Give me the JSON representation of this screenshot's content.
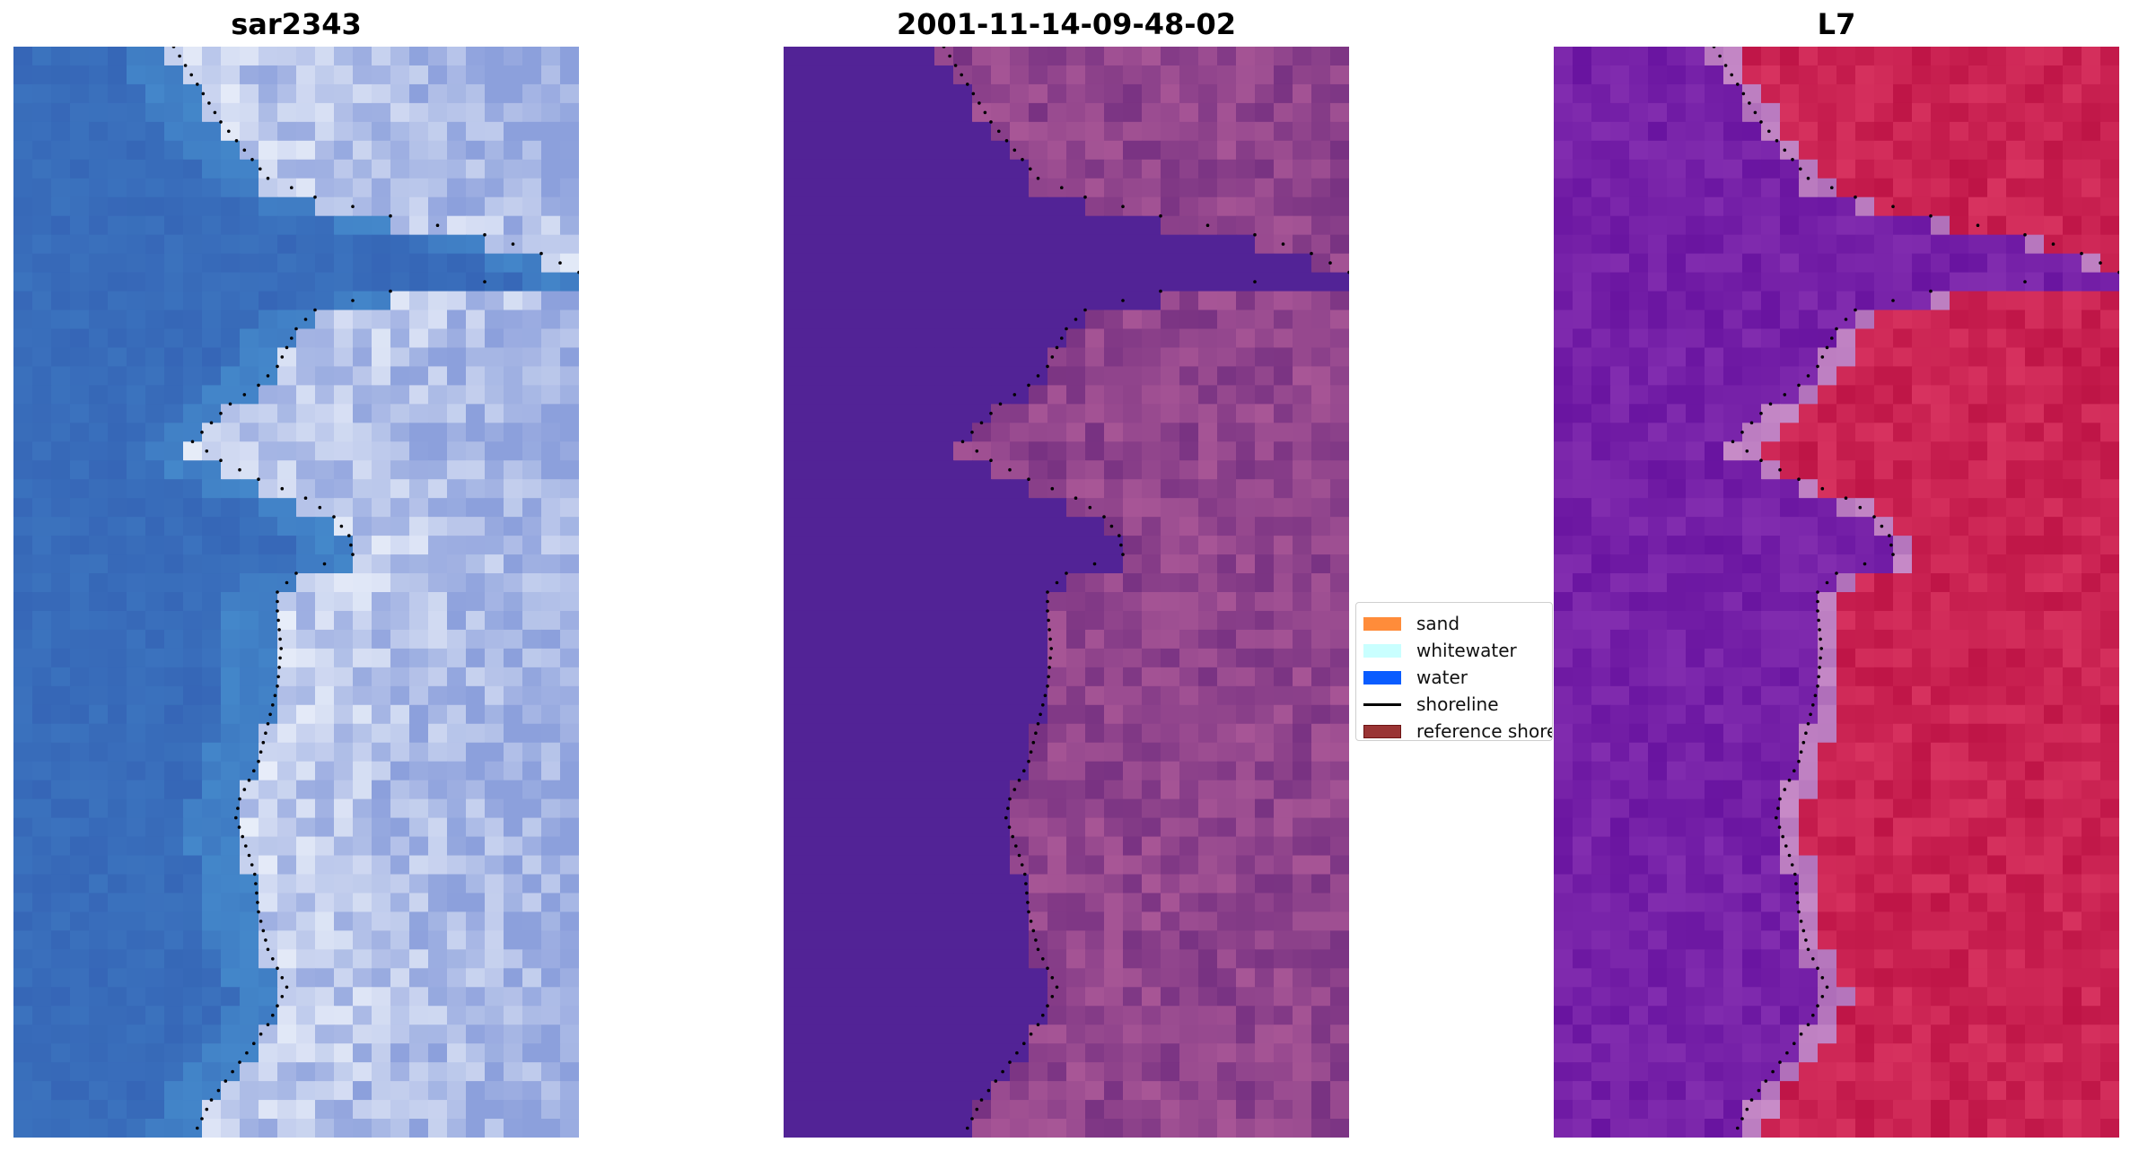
{
  "panels": [
    {
      "title": "sar2343",
      "palette": "rgb",
      "base": "#3f6fc0"
    },
    {
      "title": "2001-11-14-09-48-02",
      "palette": "classified",
      "base": "#522396"
    },
    {
      "title": "L7",
      "palette": "ndwi",
      "base": "#7a1fa6"
    }
  ],
  "legend": {
    "items": [
      {
        "label": "sand",
        "color": "#ff8c3a",
        "kind": "patch"
      },
      {
        "label": "whitewater",
        "color": "#c9ffff",
        "kind": "patch"
      },
      {
        "label": "water",
        "color": "#0a5cff",
        "kind": "patch"
      },
      {
        "label": "shoreline",
        "color": "#000000",
        "kind": "line"
      },
      {
        "label": "reference shoreline",
        "color": "#9a3434",
        "kind": "patch-bordered"
      }
    ]
  },
  "colors": {
    "water_class": "#522396",
    "land_class": "#a24a8a",
    "ndwi_land": "#c8103e",
    "ndwi_water": "#7a1fa6",
    "sat_water": "#3f6fc0",
    "sat_land": "#9aa8dc",
    "shoreline_dots": "#000000"
  }
}
